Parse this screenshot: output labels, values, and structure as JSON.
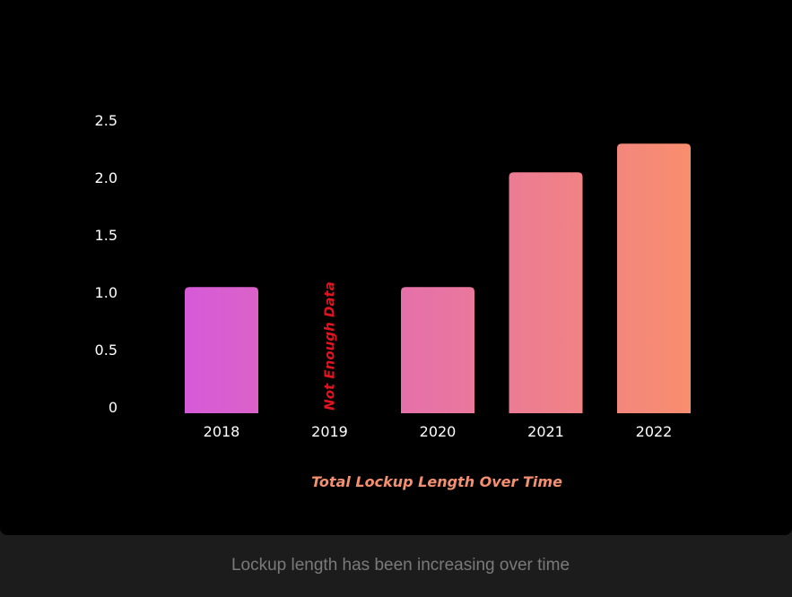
{
  "chart_data": {
    "type": "bar",
    "title": "Total Lockup Length Over Time",
    "categories": [
      "2018",
      "2019",
      "2020",
      "2021",
      "2022"
    ],
    "values": [
      1.1,
      null,
      1.1,
      2.1,
      2.35
    ],
    "y_ticks": [
      "0",
      "0.5",
      "1.0",
      "1.5",
      "2.0",
      "2.5"
    ],
    "ylim": [
      0,
      2.5
    ],
    "grid": false,
    "annotations": [
      {
        "category": "2019",
        "text": "Not Enough Data",
        "color": "#e0141e"
      }
    ],
    "colors": {
      "gradient_start": "#d65ad8",
      "gradient_end": "#f88e6e",
      "title": "#f49070",
      "tick_labels": "#ffffff"
    }
  },
  "caption": "Lockup length has been increasing over time"
}
